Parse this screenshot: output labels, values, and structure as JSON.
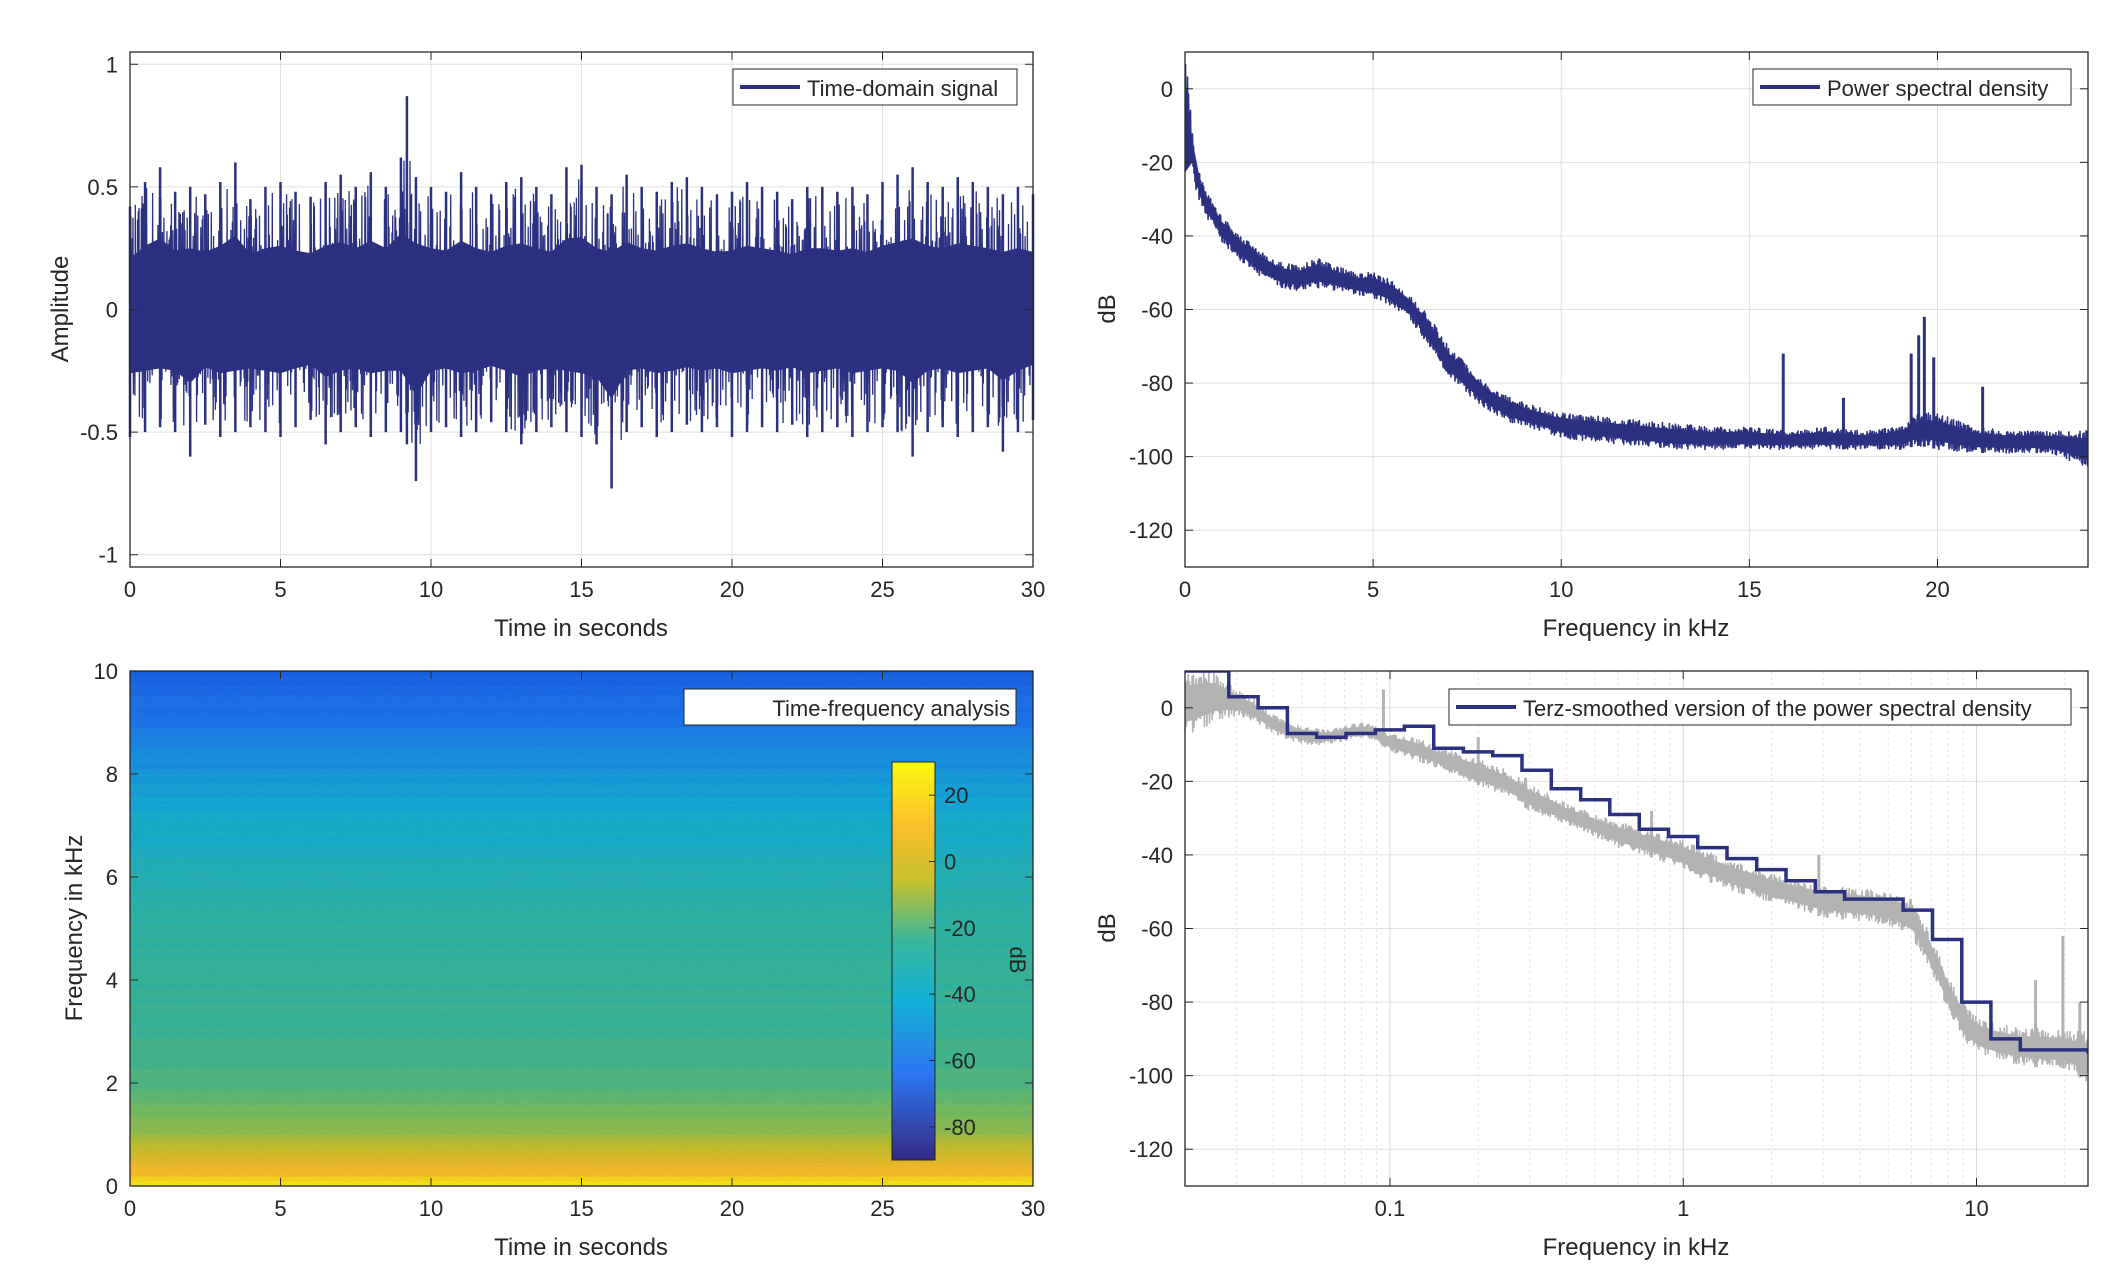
{
  "colors": {
    "signal": "#2b3080",
    "smoothed": "#2b3080",
    "raw_psd_gray": "#b3b3b3",
    "grid": "#e0e0e0",
    "axes": "#262626"
  },
  "chart_data": [
    {
      "id": "time-domain",
      "type": "line",
      "title": "",
      "xlabel": "Time in seconds",
      "ylabel": "Amplitude",
      "xlim": [
        0,
        30
      ],
      "ylim": [
        -1.05,
        1.05
      ],
      "xticks": [
        0,
        5,
        10,
        15,
        20,
        25,
        30
      ],
      "xtick_labels": [
        "0",
        "5",
        "10",
        "15",
        "20",
        "25",
        "30"
      ],
      "yticks": [
        -1,
        -0.5,
        0,
        0.5,
        1
      ],
      "ytick_labels": [
        "-1",
        "-0.5",
        "0",
        "0.5",
        "1"
      ],
      "grid": true,
      "legend": {
        "position": "top-right",
        "entries": [
          "Time-domain signal"
        ]
      },
      "series": [
        {
          "name": "Time-domain signal",
          "x": [
            0,
            0.5,
            1,
            1.5,
            2,
            2.5,
            3,
            3.5,
            4,
            4.5,
            5,
            5.5,
            6,
            6.5,
            7,
            7.5,
            8,
            8.5,
            9,
            9.2,
            9.5,
            10,
            10.5,
            11,
            11.5,
            12,
            12.5,
            13,
            13.5,
            14,
            14.5,
            15,
            15.5,
            16,
            16.5,
            17,
            17.5,
            18,
            18.5,
            19,
            19.5,
            20,
            20.5,
            21,
            21.5,
            22,
            22.5,
            23,
            23.5,
            24,
            24.5,
            25,
            25.5,
            26,
            26.5,
            27,
            27.5,
            28,
            28.5,
            29,
            29.5,
            30
          ],
          "upper": [
            0.42,
            0.52,
            0.58,
            0.48,
            0.5,
            0.47,
            0.52,
            0.6,
            0.45,
            0.5,
            0.52,
            0.48,
            0.46,
            0.52,
            0.55,
            0.5,
            0.56,
            0.5,
            0.62,
            0.87,
            0.54,
            0.5,
            0.48,
            0.56,
            0.5,
            0.47,
            0.52,
            0.54,
            0.5,
            0.47,
            0.58,
            0.59,
            0.5,
            0.47,
            0.55,
            0.5,
            0.48,
            0.52,
            0.54,
            0.5,
            0.47,
            0.48,
            0.52,
            0.5,
            0.48,
            0.45,
            0.5,
            0.5,
            0.48,
            0.5,
            0.47,
            0.52,
            0.55,
            0.58,
            0.52,
            0.5,
            0.54,
            0.52,
            0.5,
            0.47,
            0.5,
            0.47
          ],
          "lower": [
            -0.52,
            -0.5,
            -0.48,
            -0.5,
            -0.6,
            -0.47,
            -0.52,
            -0.5,
            -0.48,
            -0.5,
            -0.52,
            -0.48,
            -0.45,
            -0.55,
            -0.5,
            -0.48,
            -0.52,
            -0.5,
            -0.5,
            -0.55,
            -0.7,
            -0.5,
            -0.48,
            -0.52,
            -0.5,
            -0.46,
            -0.5,
            -0.55,
            -0.5,
            -0.48,
            -0.5,
            -0.52,
            -0.55,
            -0.73,
            -0.5,
            -0.48,
            -0.52,
            -0.5,
            -0.47,
            -0.5,
            -0.48,
            -0.52,
            -0.5,
            -0.48,
            -0.5,
            -0.47,
            -0.52,
            -0.5,
            -0.48,
            -0.52,
            -0.5,
            -0.48,
            -0.5,
            -0.6,
            -0.5,
            -0.48,
            -0.52,
            -0.5,
            -0.48,
            -0.58,
            -0.5,
            -0.45
          ]
        }
      ]
    },
    {
      "id": "psd",
      "type": "line",
      "title": "",
      "xlabel": "Frequency in kHz",
      "ylabel": "dB",
      "xlim": [
        0,
        24
      ],
      "ylim": [
        -130,
        10
      ],
      "xticks": [
        0,
        5,
        10,
        15,
        20
      ],
      "xtick_labels": [
        "0",
        "5",
        "10",
        "15",
        "20"
      ],
      "yticks": [
        0,
        -20,
        -40,
        -60,
        -80,
        -100,
        -120
      ],
      "ytick_labels": [
        "0",
        "-20",
        "-40",
        "-60",
        "-80",
        "-100",
        "-120"
      ],
      "grid": true,
      "legend": {
        "position": "top-right",
        "entries": [
          "Power spectral density"
        ]
      },
      "series": [
        {
          "name": "Power spectral density",
          "x": [
            0,
            0.05,
            0.1,
            0.2,
            0.3,
            0.5,
            0.8,
            1.0,
            1.5,
            2.0,
            2.5,
            3.0,
            3.5,
            4.0,
            4.5,
            5.0,
            5.5,
            6.0,
            6.5,
            7.0,
            7.5,
            8.0,
            8.5,
            9.0,
            9.5,
            10,
            11,
            12,
            13,
            14,
            15,
            16,
            17,
            18,
            19,
            19.5,
            20,
            21,
            22,
            23,
            24
          ],
          "upper": [
            10,
            8,
            2,
            -12,
            -20,
            -26,
            -32,
            -35,
            -40,
            -44,
            -47,
            -48,
            -46,
            -48,
            -50,
            -50,
            -52,
            -56,
            -62,
            -70,
            -75,
            -80,
            -83,
            -85,
            -87,
            -88,
            -89,
            -90,
            -91,
            -92,
            -92,
            -93,
            -92,
            -93,
            -92,
            -88,
            -88,
            -92,
            -93,
            -93,
            -93
          ],
          "lower": [
            -32,
            -20,
            -16,
            -22,
            -28,
            -34,
            -38,
            -42,
            -47,
            -51,
            -54,
            -55,
            -54,
            -55,
            -56,
            -57,
            -59,
            -63,
            -70,
            -78,
            -83,
            -87,
            -90,
            -92,
            -93,
            -95,
            -96,
            -97,
            -98,
            -98,
            -98,
            -98,
            -98,
            -98,
            -98,
            -97,
            -98,
            -99,
            -99,
            -99,
            -103
          ]
        }
      ],
      "spikes": [
        {
          "x": 15.9,
          "y": -72
        },
        {
          "x": 17.5,
          "y": -84
        },
        {
          "x": 19.3,
          "y": -72
        },
        {
          "x": 19.5,
          "y": -67
        },
        {
          "x": 19.65,
          "y": -62
        },
        {
          "x": 19.9,
          "y": -73
        },
        {
          "x": 21.2,
          "y": -81
        }
      ]
    },
    {
      "id": "spectrogram",
      "type": "heatmap",
      "title": "",
      "xlabel": "Time in seconds",
      "ylabel": "Frequency in kHz",
      "xlim": [
        0,
        30
      ],
      "ylim": [
        0,
        10
      ],
      "xticks": [
        0,
        5,
        10,
        15,
        20,
        25,
        30
      ],
      "xtick_labels": [
        "0",
        "5",
        "10",
        "15",
        "20",
        "25",
        "30"
      ],
      "yticks": [
        0,
        2,
        4,
        6,
        8,
        10
      ],
      "ytick_labels": [
        "0",
        "2",
        "4",
        "6",
        "8",
        "10"
      ],
      "legend": {
        "position": "top-right",
        "entries": [
          "Time-frequency analysis"
        ]
      },
      "colorbar": {
        "label": "dB",
        "range": [
          -90,
          30
        ],
        "ticks": [
          20,
          0,
          -20,
          -40,
          -60,
          -80
        ],
        "tick_labels": [
          "20",
          "0",
          "-20",
          "-40",
          "-60",
          "-80"
        ]
      },
      "level_profile": {
        "freq_khz": [
          0,
          0.2,
          0.5,
          1.0,
          1.5,
          2.0,
          3.0,
          4.0,
          5.0,
          6.0,
          7.0,
          8.0,
          9.0,
          10.0
        ],
        "db": [
          28,
          18,
          8,
          -8,
          -14,
          -20,
          -24,
          -26,
          -28,
          -32,
          -38,
          -46,
          -55,
          -62
        ]
      }
    },
    {
      "id": "terz-psd",
      "type": "line",
      "title": "",
      "xlabel": "Frequency in kHz",
      "ylabel": "dB",
      "xscale": "log",
      "xlim": [
        0.02,
        24
      ],
      "ylim": [
        -130,
        10
      ],
      "xticks": [
        0.1,
        1,
        10
      ],
      "xtick_labels": [
        "0.1",
        "1",
        "10"
      ],
      "yticks": [
        0,
        -20,
        -40,
        -60,
        -80,
        -100,
        -120
      ],
      "ytick_labels": [
        "0",
        "-20",
        "-40",
        "-60",
        "-80",
        "-100",
        "-120"
      ],
      "grid": true,
      "legend": {
        "position": "top-right",
        "entries": [
          "Terz-smoothed version of the power spectral density"
        ]
      },
      "raw_band": {
        "x": [
          0.02,
          0.025,
          0.03,
          0.035,
          0.04,
          0.05,
          0.06,
          0.07,
          0.08,
          0.09,
          0.1,
          0.12,
          0.15,
          0.2,
          0.25,
          0.3,
          0.4,
          0.5,
          0.6,
          0.8,
          1.0,
          1.2,
          1.5,
          2.0,
          2.5,
          3.0,
          4.0,
          5.0,
          6.0,
          7.0,
          8.0,
          9.0,
          10,
          12,
          14,
          17,
          20,
          24
        ],
        "upper": [
          10,
          10,
          5,
          2,
          -2,
          -5,
          -6,
          -5,
          -4,
          -5,
          -7,
          -8,
          -11,
          -14,
          -17,
          -21,
          -26,
          -29,
          -31,
          -34,
          -36,
          -39,
          -42,
          -45,
          -47,
          -48,
          -49,
          -50,
          -52,
          -62,
          -73,
          -80,
          -84,
          -86,
          -87,
          -87,
          -88,
          -88
        ],
        "lower": [
          -8,
          -4,
          -2,
          -4,
          -7,
          -10,
          -10,
          -9,
          -8,
          -9,
          -12,
          -14,
          -17,
          -21,
          -24,
          -28,
          -32,
          -35,
          -38,
          -41,
          -44,
          -47,
          -50,
          -53,
          -55,
          -57,
          -58,
          -59,
          -62,
          -72,
          -82,
          -90,
          -94,
          -96,
          -97,
          -98,
          -98,
          -102
        ]
      },
      "raw_spikes": [
        {
          "x": 0.095,
          "y": 5
        },
        {
          "x": 0.13,
          "y": -10
        },
        {
          "x": 0.2,
          "y": -8
        },
        {
          "x": 0.29,
          "y": -19
        },
        {
          "x": 0.78,
          "y": -28
        },
        {
          "x": 2.9,
          "y": -40
        },
        {
          "x": 15.9,
          "y": -74
        },
        {
          "x": 19.7,
          "y": -62
        },
        {
          "x": 22.5,
          "y": -80
        }
      ],
      "series": [
        {
          "name": "Terz-smoothed version of the power spectral density",
          "band_edges": [
            0.02,
            0.0282,
            0.0355,
            0.0447,
            0.0562,
            0.0708,
            0.0891,
            0.112,
            0.141,
            0.178,
            0.224,
            0.282,
            0.355,
            0.447,
            0.562,
            0.708,
            0.891,
            1.12,
            1.41,
            1.78,
            2.24,
            2.82,
            3.55,
            4.47,
            5.62,
            7.08,
            8.91,
            11.2,
            14.1,
            24
          ],
          "levels": [
            10,
            3,
            0,
            -7,
            -8,
            -7,
            -6,
            -5,
            -11,
            -12,
            -13,
            -17,
            -22,
            -25,
            -29,
            -33,
            -35,
            -38,
            -41,
            -44,
            -47,
            -50,
            -52,
            -52,
            -55,
            -63,
            -80,
            -90,
            -93,
            -94
          ]
        }
      ]
    }
  ]
}
